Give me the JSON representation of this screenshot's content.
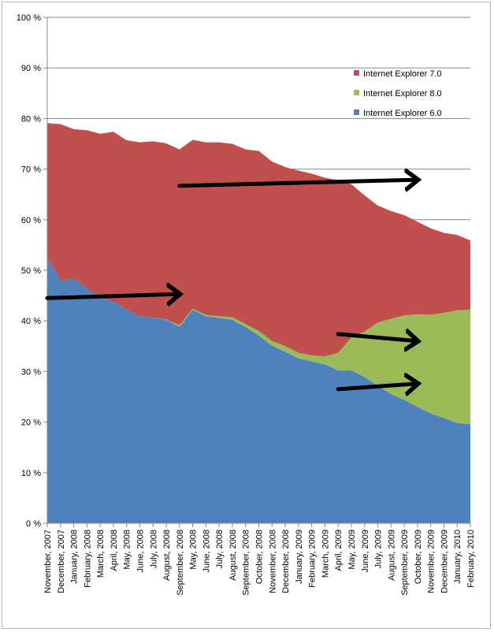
{
  "chart_data": {
    "type": "area",
    "stacked": true,
    "title": "",
    "xlabel": "",
    "ylabel": "",
    "ylim": [
      0,
      100
    ],
    "yticks": [
      "0 %",
      "10 %",
      "20 %",
      "30 %",
      "40 %",
      "50 %",
      "60 %",
      "70 %",
      "80 %",
      "90 %",
      "100 %"
    ],
    "grid": true,
    "legend_position": "top-right",
    "categories": [
      "November, 2007",
      "December, 2007",
      "January, 2008",
      "February, 2008",
      "March, 2008",
      "April, 2008",
      "May, 2008",
      "June, 2008",
      "July, 2008",
      "August, 2008",
      "September, 2008",
      "May, 2008",
      "June, 2008",
      "July, 2008",
      "August, 2008",
      "September, 2008",
      "October, 2008",
      "November, 2008",
      "December, 2008",
      "January, 2009",
      "February, 2009",
      "March, 2009",
      "April, 2009",
      "May, 2009",
      "June, 2009",
      "July, 2009",
      "August, 2009",
      "September, 2009",
      "October, 2009",
      "November, 2009",
      "December, 2009",
      "January, 2010",
      "February, 2010"
    ],
    "series": [
      {
        "name": "Internet Explorer 6.0",
        "color": "#4f81bd",
        "values": [
          52.5,
          48,
          48.3,
          46.4,
          44.6,
          43.8,
          42.2,
          40.9,
          40.6,
          40.2,
          38.8,
          42.2,
          40.9,
          40.6,
          40.2,
          38.8,
          37.1,
          35.1,
          33.9,
          32.6,
          32.0,
          31.4,
          30.2,
          30.2,
          28.9,
          27.2,
          25.5,
          24.4,
          23.0,
          21.7,
          20.8,
          19.8,
          19.6
        ]
      },
      {
        "name": "Internet Explorer 8.0",
        "color": "#9bbb59",
        "values": [
          0,
          0,
          0,
          0,
          0,
          0,
          0,
          0,
          0,
          0.1,
          0.3,
          0.2,
          0.3,
          0.3,
          0.5,
          0.6,
          0.9,
          0.9,
          1.1,
          1.1,
          1.2,
          1.6,
          3.5,
          6.5,
          9.0,
          12.5,
          14.9,
          16.7,
          18.3,
          19.5,
          20.8,
          22.3,
          22.6
        ]
      },
      {
        "name": "Internet Explorer 7.0",
        "color": "#c0504d",
        "values": [
          26.6,
          30.9,
          29.6,
          31.3,
          32.4,
          33.6,
          33.5,
          34.4,
          34.9,
          34.8,
          34.8,
          33.4,
          34.1,
          34.4,
          34.3,
          34.5,
          35.6,
          35.5,
          35.4,
          36.0,
          35.9,
          35.3,
          34.1,
          30.3,
          26.9,
          23.1,
          21.3,
          19.8,
          18.3,
          17.1,
          15.8,
          14.9,
          13.7
        ]
      }
    ],
    "legend": [
      "Internet Explorer 7.0",
      "Internet Explorer 8.0",
      "Internet Explorer 6.0"
    ],
    "annotations": [
      {
        "type": "arrow",
        "from": {
          "x": "November, 2007",
          "y": 44.5
        },
        "to": {
          "x": "September, 2008",
          "y": 45.3
        }
      },
      {
        "type": "arrow",
        "from": {
          "x": "September, 2008",
          "y": 66.7
        },
        "to": {
          "x": "October, 2009",
          "y": 67.9
        }
      },
      {
        "type": "arrow",
        "from": {
          "x": "April, 2009",
          "y": 37.4
        },
        "to": {
          "x": "October, 2009",
          "y": 36.0
        }
      },
      {
        "type": "arrow",
        "from": {
          "x": "April, 2009",
          "y": 26.5
        },
        "to": {
          "x": "October, 2009",
          "y": 27.6
        }
      }
    ]
  }
}
